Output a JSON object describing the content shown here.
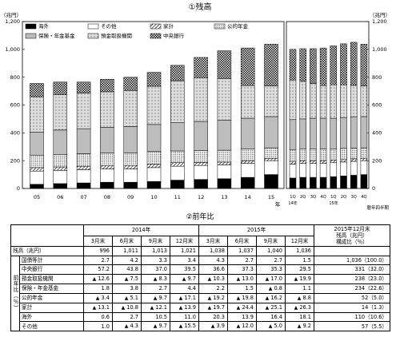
{
  "chart_data": {
    "type": "bar",
    "stacked": true,
    "title": "①残高",
    "ylabel_left": "（兆円）",
    "ylabel_right": "（兆円）",
    "ylim": [
      0,
      1200
    ],
    "yticks": [
      0,
      200,
      400,
      600,
      800,
      1000,
      1200
    ],
    "x_annual_suffix": "年",
    "x_quarter_note": "暦年四半期",
    "annual_categories": [
      "05",
      "06",
      "07",
      "08",
      "09",
      "10",
      "11",
      "12",
      "13",
      "14",
      "15"
    ],
    "quarter_categories": [
      "1Q",
      "2Q",
      "3Q",
      "4Q",
      "1Q",
      "2Q",
      "3Q",
      "4Q"
    ],
    "quarter_year_labels": [
      "14年",
      "15年"
    ],
    "series_order": [
      "overseas",
      "other",
      "household",
      "public_pension",
      "insurance_pension",
      "depository",
      "boj"
    ],
    "series": [
      {
        "key": "overseas",
        "name": "海外",
        "pattern": "solid-black"
      },
      {
        "key": "other",
        "name": "その他",
        "pattern": "white"
      },
      {
        "key": "household",
        "name": "家計",
        "pattern": "diagonal"
      },
      {
        "key": "public_pension",
        "name": "公的年金",
        "pattern": "dots"
      },
      {
        "key": "insurance_pension",
        "name": "保険・年金基金",
        "pattern": "gray"
      },
      {
        "key": "depository",
        "name": "預金取扱機関",
        "pattern": "crosshatch"
      },
      {
        "key": "boj",
        "name": "中央銀行",
        "pattern": "checker"
      }
    ],
    "annual_values": {
      "overseas": [
        30,
        35,
        40,
        45,
        45,
        50,
        60,
        65,
        70,
        80,
        100
      ],
      "other": [
        95,
        95,
        95,
        95,
        95,
        100,
        100,
        100,
        100,
        100,
        100
      ],
      "household": [
        25,
        25,
        25,
        25,
        25,
        25,
        25,
        22,
        20,
        20,
        17
      ],
      "public_pension": [
        90,
        90,
        90,
        90,
        90,
        90,
        85,
        85,
        85,
        85,
        75
      ],
      "insurance_pension": [
        165,
        175,
        180,
        185,
        190,
        195,
        205,
        210,
        215,
        220,
        225
      ],
      "depository": [
        255,
        255,
        255,
        255,
        260,
        275,
        300,
        315,
        300,
        235,
        220
      ],
      "boj": [
        95,
        90,
        80,
        90,
        95,
        100,
        110,
        145,
        200,
        270,
        300
      ]
    },
    "quarter_values": {
      "overseas": [
        75,
        80,
        80,
        80,
        85,
        90,
        95,
        100
      ],
      "other": [
        100,
        100,
        100,
        100,
        100,
        100,
        100,
        100
      ],
      "household": [
        20,
        20,
        20,
        20,
        20,
        18,
        18,
        17
      ],
      "public_pension": [
        85,
        85,
        85,
        85,
        80,
        80,
        78,
        75
      ],
      "insurance_pension": [
        215,
        215,
        220,
        220,
        220,
        222,
        225,
        225
      ],
      "depository": [
        285,
        270,
        250,
        235,
        240,
        235,
        225,
        220
      ],
      "boj": [
        220,
        235,
        250,
        270,
        280,
        295,
        310,
        300
      ]
    }
  },
  "table": {
    "title": "②前年比",
    "year_headers": [
      "2014年",
      "2015年"
    ],
    "summary_header": [
      "2015年12月末",
      "残高（兆円）",
      "構成比（％）"
    ],
    "quarter_headers": [
      "3月末",
      "6月末",
      "9月末",
      "12月末",
      "3月末",
      "6月末",
      "9月末",
      "12月末"
    ],
    "balance_label": "残高（兆円）",
    "balance_values": [
      "996",
      "1,011",
      "1,013",
      "1,021",
      "1,038",
      "1,037",
      "1,040",
      "1,036"
    ],
    "side_label": "前年比（％）",
    "rows": [
      {
        "label": "国債等計",
        "values": [
          "2.7",
          "4.2",
          "3.3",
          "3.4",
          "4.3",
          "2.7",
          "2.7",
          "1.5"
        ],
        "neg": [
          false,
          false,
          false,
          false,
          false,
          false,
          false,
          false
        ],
        "summary": "1,036（100.0）"
      },
      {
        "label": "中央銀行",
        "values": [
          "57.2",
          "43.8",
          "37.0",
          "39.5",
          "36.6",
          "37.3",
          "35.3",
          "29.5"
        ],
        "neg": [
          false,
          false,
          false,
          false,
          false,
          false,
          false,
          false
        ],
        "summary": "331（32.0）"
      },
      {
        "label": "預金取扱機関",
        "values": [
          "12.6",
          "7.5",
          "8.3",
          "9.7",
          "10.3",
          "13.0",
          "17.0",
          "19.9"
        ],
        "neg": [
          true,
          true,
          true,
          true,
          true,
          true,
          true,
          true
        ],
        "summary": "238（23.0）"
      },
      {
        "label": "保険・年金基金",
        "values": [
          "1.8",
          "3.8",
          "2.7",
          "4.4",
          "2.2",
          "1.5",
          "0.8",
          "1.1"
        ],
        "neg": [
          false,
          false,
          false,
          false,
          false,
          false,
          true,
          false
        ],
        "summary": "234（22.6）"
      },
      {
        "label": "公的年金",
        "values": [
          "3.4",
          "5.1",
          "9.7",
          "17.1",
          "19.2",
          "19.8",
          "16.2",
          "8.8"
        ],
        "neg": [
          true,
          true,
          true,
          true,
          true,
          true,
          true,
          true
        ],
        "summary": "52（5.0）"
      },
      {
        "label": "家計",
        "values": [
          "13.1",
          "10.8",
          "12.1",
          "13.9",
          "19.7",
          "24.4",
          "25.1",
          "26.3"
        ],
        "neg": [
          true,
          true,
          true,
          true,
          true,
          true,
          true,
          true
        ],
        "summary": "14（1.3）"
      },
      {
        "label": "海外",
        "values": [
          "0.6",
          "2.7",
          "10.5",
          "11.0",
          "20.3",
          "13.9",
          "16.4",
          "18.1"
        ],
        "neg": [
          false,
          false,
          false,
          false,
          false,
          false,
          false,
          false
        ],
        "summary": "110（10.6）"
      },
      {
        "label": "その他",
        "values": [
          "1.0",
          "4.3",
          "9.7",
          "15.5",
          "3.9",
          "12.0",
          "5.0",
          "9.2"
        ],
        "neg": [
          false,
          true,
          true,
          true,
          true,
          true,
          true,
          true
        ],
        "summary": "57（5.5）"
      }
    ],
    "negative_marker": "▲"
  }
}
